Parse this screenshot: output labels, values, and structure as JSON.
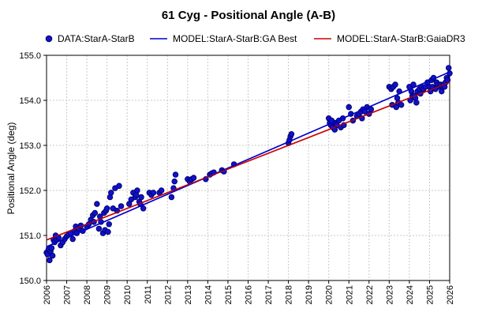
{
  "chart_data": {
    "type": "scatter",
    "title": "61 Cyg - Positional Angle (A-B)",
    "xlabel": "",
    "ylabel": "Positional Angle (deg)",
    "xlim": [
      2006,
      2026
    ],
    "ylim": [
      150.0,
      155.0
    ],
    "x_ticks": [
      "2006",
      "2007",
      "2008",
      "2009",
      "2010",
      "2011",
      "2012",
      "2013",
      "2014",
      "2015",
      "2016",
      "2017",
      "2018",
      "2019",
      "2020",
      "2021",
      "2022",
      "2023",
      "2024",
      "2025",
      "2026"
    ],
    "y_ticks": [
      "150.0",
      "151.0",
      "152.0",
      "153.0",
      "154.0",
      "155.0"
    ],
    "grid": true,
    "legend_position": "top",
    "series": [
      {
        "name": "DATA:StarA-StarB",
        "kind": "points",
        "color": "#1111cc",
        "points": [
          [
            2006.0,
            150.62
          ],
          [
            2006.05,
            150.58
          ],
          [
            2006.1,
            150.7
          ],
          [
            2006.15,
            150.45
          ],
          [
            2006.2,
            150.65
          ],
          [
            2006.25,
            150.72
          ],
          [
            2006.3,
            150.55
          ],
          [
            2006.35,
            150.9
          ],
          [
            2006.4,
            150.85
          ],
          [
            2006.45,
            151.0
          ],
          [
            2006.5,
            150.92
          ],
          [
            2006.6,
            150.95
          ],
          [
            2006.7,
            150.78
          ],
          [
            2006.8,
            150.85
          ],
          [
            2006.9,
            150.92
          ],
          [
            2007.0,
            150.98
          ],
          [
            2007.1,
            151.02
          ],
          [
            2007.2,
            151.05
          ],
          [
            2007.3,
            150.92
          ],
          [
            2007.4,
            151.1
          ],
          [
            2007.45,
            151.2
          ],
          [
            2007.5,
            151.05
          ],
          [
            2007.6,
            151.15
          ],
          [
            2007.7,
            151.22
          ],
          [
            2007.8,
            151.1
          ],
          [
            2008.0,
            151.2
          ],
          [
            2008.1,
            151.25
          ],
          [
            2008.2,
            151.35
          ],
          [
            2008.3,
            151.45
          ],
          [
            2008.35,
            151.3
          ],
          [
            2008.4,
            151.5
          ],
          [
            2008.5,
            151.7
          ],
          [
            2008.6,
            151.15
          ],
          [
            2008.65,
            151.42
          ],
          [
            2008.7,
            151.3
          ],
          [
            2008.8,
            151.05
          ],
          [
            2008.85,
            151.5
          ],
          [
            2008.9,
            151.12
          ],
          [
            2008.95,
            151.55
          ],
          [
            2009.0,
            151.6
          ],
          [
            2009.05,
            151.08
          ],
          [
            2009.1,
            151.25
          ],
          [
            2009.15,
            151.85
          ],
          [
            2009.2,
            151.95
          ],
          [
            2009.3,
            151.6
          ],
          [
            2009.4,
            152.05
          ],
          [
            2009.5,
            151.55
          ],
          [
            2009.6,
            152.1
          ],
          [
            2009.7,
            151.65
          ],
          [
            2010.1,
            151.7
          ],
          [
            2010.2,
            151.8
          ],
          [
            2010.3,
            151.95
          ],
          [
            2010.4,
            151.85
          ],
          [
            2010.45,
            151.9
          ],
          [
            2010.5,
            152.0
          ],
          [
            2010.6,
            151.75
          ],
          [
            2010.65,
            151.7
          ],
          [
            2010.7,
            151.85
          ],
          [
            2010.8,
            151.6
          ],
          [
            2011.1,
            151.95
          ],
          [
            2011.2,
            151.9
          ],
          [
            2011.3,
            151.95
          ],
          [
            2011.6,
            151.95
          ],
          [
            2011.7,
            152.0
          ],
          [
            2012.2,
            151.85
          ],
          [
            2012.3,
            152.05
          ],
          [
            2012.35,
            152.2
          ],
          [
            2012.4,
            152.35
          ],
          [
            2013.0,
            152.25
          ],
          [
            2013.1,
            152.2
          ],
          [
            2013.2,
            152.25
          ],
          [
            2013.3,
            152.28
          ],
          [
            2013.9,
            152.25
          ],
          [
            2014.1,
            152.35
          ],
          [
            2014.2,
            152.38
          ],
          [
            2014.3,
            152.4
          ],
          [
            2014.7,
            152.45
          ],
          [
            2014.8,
            152.42
          ],
          [
            2015.3,
            152.58
          ],
          [
            2018.0,
            153.05
          ],
          [
            2018.05,
            153.12
          ],
          [
            2018.1,
            153.2
          ],
          [
            2018.15,
            153.25
          ],
          [
            2020.0,
            153.6
          ],
          [
            2020.05,
            153.5
          ],
          [
            2020.1,
            153.45
          ],
          [
            2020.15,
            153.55
          ],
          [
            2020.2,
            153.4
          ],
          [
            2020.3,
            153.35
          ],
          [
            2020.35,
            153.5
          ],
          [
            2020.4,
            153.45
          ],
          [
            2020.5,
            153.55
          ],
          [
            2020.6,
            153.4
          ],
          [
            2020.7,
            153.6
          ],
          [
            2020.75,
            153.45
          ],
          [
            2021.0,
            153.85
          ],
          [
            2021.1,
            153.7
          ],
          [
            2021.2,
            153.55
          ],
          [
            2021.4,
            153.65
          ],
          [
            2021.5,
            153.7
          ],
          [
            2021.6,
            153.75
          ],
          [
            2021.65,
            153.6
          ],
          [
            2021.7,
            153.8
          ],
          [
            2021.8,
            153.75
          ],
          [
            2021.9,
            153.85
          ],
          [
            2022.0,
            153.7
          ],
          [
            2022.1,
            153.8
          ],
          [
            2023.0,
            154.3
          ],
          [
            2023.1,
            154.25
          ],
          [
            2023.15,
            153.9
          ],
          [
            2023.2,
            154.3
          ],
          [
            2023.3,
            154.35
          ],
          [
            2023.35,
            153.85
          ],
          [
            2023.4,
            154.05
          ],
          [
            2023.45,
            153.95
          ],
          [
            2023.5,
            154.2
          ],
          [
            2023.6,
            153.9
          ],
          [
            2024.0,
            154.3
          ],
          [
            2024.05,
            154.0
          ],
          [
            2024.1,
            154.2
          ],
          [
            2024.15,
            154.1
          ],
          [
            2024.2,
            154.35
          ],
          [
            2024.25,
            154.1
          ],
          [
            2024.3,
            154.05
          ],
          [
            2024.35,
            153.95
          ],
          [
            2024.4,
            154.2
          ],
          [
            2024.5,
            154.25
          ],
          [
            2024.55,
            154.15
          ],
          [
            2024.6,
            154.3
          ],
          [
            2024.7,
            154.25
          ],
          [
            2024.8,
            154.3
          ],
          [
            2024.9,
            154.4
          ],
          [
            2025.0,
            154.3
          ],
          [
            2025.05,
            154.2
          ],
          [
            2025.1,
            154.45
          ],
          [
            2025.15,
            154.3
          ],
          [
            2025.2,
            154.5
          ],
          [
            2025.3,
            154.25
          ],
          [
            2025.35,
            154.4
          ],
          [
            2025.4,
            154.35
          ],
          [
            2025.5,
            154.3
          ],
          [
            2025.55,
            154.35
          ],
          [
            2025.6,
            154.2
          ],
          [
            2025.65,
            154.3
          ],
          [
            2025.7,
            154.35
          ],
          [
            2025.75,
            154.3
          ],
          [
            2025.8,
            154.4
          ],
          [
            2025.85,
            154.5
          ],
          [
            2025.9,
            154.45
          ],
          [
            2025.95,
            154.72
          ],
          [
            2026.0,
            154.6
          ]
        ]
      },
      {
        "name": "MODEL:StarA-StarB:GA Best",
        "kind": "line",
        "color": "#0000cc",
        "points": [
          [
            2006.0,
            150.75
          ],
          [
            2026.0,
            154.63
          ]
        ]
      },
      {
        "name": "MODEL:StarA-StarB:GaiaDR3",
        "kind": "line",
        "color": "#cc0000",
        "points": [
          [
            2006.0,
            150.9
          ],
          [
            2026.0,
            154.4
          ]
        ]
      }
    ]
  }
}
